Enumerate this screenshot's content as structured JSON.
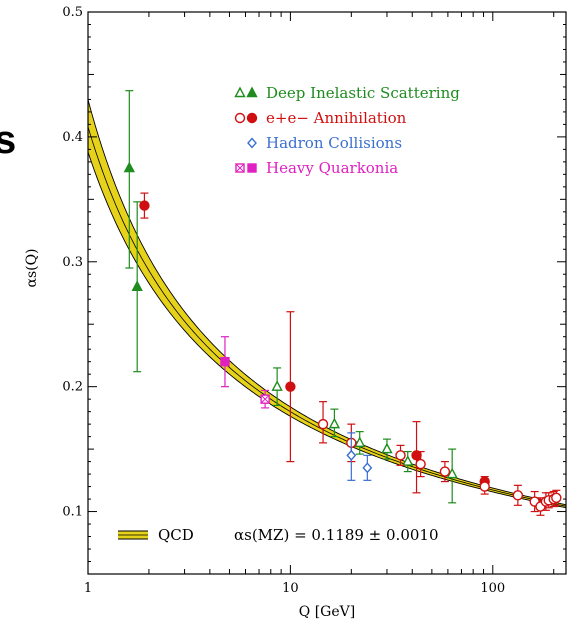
{
  "overlay_text": "s",
  "colors": {
    "dis": "#1e8c1e",
    "ee": "#d01010",
    "hadron": "#3a6fd0",
    "quarkonia": "#e020c0",
    "band_fill": "#e6d21a",
    "axis": "#000000"
  },
  "chart_data": {
    "type": "scatter",
    "title": "",
    "xlabel": "Q [GeV]",
    "ylabel": "αs(Q)",
    "xscale": "log",
    "xlim": [
      1,
      230
    ],
    "ylim": [
      0.05,
      0.5
    ],
    "xticks": [
      {
        "value": 1,
        "label": "1"
      },
      {
        "value": 10,
        "label": "10"
      },
      {
        "value": 100,
        "label": "100"
      }
    ],
    "yticks": [
      {
        "value": 0.1,
        "label": "0.1"
      },
      {
        "value": 0.2,
        "label": "0.2"
      },
      {
        "value": 0.3,
        "label": "0.3"
      },
      {
        "value": 0.4,
        "label": "0.4"
      },
      {
        "value": 0.5,
        "label": "0.5"
      }
    ],
    "legend_position": "top-right",
    "series": [
      {
        "name": "Deep Inelastic Scattering",
        "key": "dis",
        "marker": "triangle",
        "points": [
          {
            "x": 1.6,
            "y": 0.375,
            "lo": 0.295,
            "hi": 0.437,
            "filled": true
          },
          {
            "x": 1.75,
            "y": 0.28,
            "lo": 0.212,
            "hi": 0.348,
            "filled": true
          },
          {
            "x": 8.6,
            "y": 0.2,
            "lo": 0.185,
            "hi": 0.215,
            "filled": false
          },
          {
            "x": 16.5,
            "y": 0.17,
            "lo": 0.16,
            "hi": 0.182,
            "filled": false
          },
          {
            "x": 22.0,
            "y": 0.155,
            "lo": 0.146,
            "hi": 0.164,
            "filled": false
          },
          {
            "x": 30.0,
            "y": 0.15,
            "lo": 0.142,
            "hi": 0.158,
            "filled": false
          },
          {
            "x": 38.0,
            "y": 0.14,
            "lo": 0.132,
            "hi": 0.148,
            "filled": false
          },
          {
            "x": 63.0,
            "y": 0.13,
            "lo": 0.107,
            "hi": 0.15,
            "filled": false
          }
        ]
      },
      {
        "name": "e+e− Annihilation",
        "key": "ee",
        "marker": "circle",
        "points": [
          {
            "x": 1.9,
            "y": 0.345,
            "lo": 0.335,
            "hi": 0.355,
            "filled": true
          },
          {
            "x": 10.0,
            "y": 0.2,
            "lo": 0.14,
            "hi": 0.26,
            "filled": true
          },
          {
            "x": 14.5,
            "y": 0.17,
            "lo": 0.155,
            "hi": 0.188,
            "filled": false
          },
          {
            "x": 20.0,
            "y": 0.155,
            "lo": 0.14,
            "hi": 0.17,
            "filled": false
          },
          {
            "x": 35.0,
            "y": 0.145,
            "lo": 0.137,
            "hi": 0.153,
            "filled": false
          },
          {
            "x": 42.0,
            "y": 0.145,
            "lo": 0.115,
            "hi": 0.172,
            "filled": true
          },
          {
            "x": 44.0,
            "y": 0.138,
            "lo": 0.128,
            "hi": 0.148,
            "filled": false
          },
          {
            "x": 58.0,
            "y": 0.132,
            "lo": 0.124,
            "hi": 0.14,
            "filled": false
          },
          {
            "x": 91.2,
            "y": 0.124,
            "lo": 0.12,
            "hi": 0.128,
            "filled": true
          },
          {
            "x": 91.2,
            "y": 0.12,
            "lo": 0.114,
            "hi": 0.126,
            "filled": false
          },
          {
            "x": 133.0,
            "y": 0.113,
            "lo": 0.105,
            "hi": 0.121,
            "filled": false
          },
          {
            "x": 161.0,
            "y": 0.108,
            "lo": 0.1,
            "hi": 0.116,
            "filled": false
          },
          {
            "x": 172.0,
            "y": 0.104,
            "lo": 0.097,
            "hi": 0.111,
            "filled": false
          },
          {
            "x": 183.0,
            "y": 0.108,
            "lo": 0.101,
            "hi": 0.115,
            "filled": false
          },
          {
            "x": 189.0,
            "y": 0.109,
            "lo": 0.103,
            "hi": 0.115,
            "filled": false
          },
          {
            "x": 200.0,
            "y": 0.11,
            "lo": 0.104,
            "hi": 0.116,
            "filled": false
          },
          {
            "x": 206.0,
            "y": 0.111,
            "lo": 0.105,
            "hi": 0.117,
            "filled": false
          }
        ]
      },
      {
        "name": "Hadron Collisions",
        "key": "hadron",
        "marker": "diamond",
        "points": [
          {
            "x": 20.0,
            "y": 0.145,
            "lo": 0.125,
            "hi": 0.163,
            "filled": false
          },
          {
            "x": 24.0,
            "y": 0.135,
            "lo": 0.125,
            "hi": 0.145,
            "filled": false
          }
        ]
      },
      {
        "name": "Heavy Quarkonia",
        "key": "quarkonia",
        "marker": "square",
        "points": [
          {
            "x": 4.75,
            "y": 0.22,
            "lo": 0.2,
            "hi": 0.24,
            "filled": true
          },
          {
            "x": 7.5,
            "y": 0.19,
            "lo": 0.183,
            "hi": 0.197,
            "filled": false
          }
        ]
      }
    ],
    "band": {
      "legend_label": "QCD",
      "annotation": "αs(MZ) = 0.1189 ± 0.0010",
      "central_mz": 0.1189,
      "uncertainty": 0.001,
      "mz": 91.19
    }
  }
}
